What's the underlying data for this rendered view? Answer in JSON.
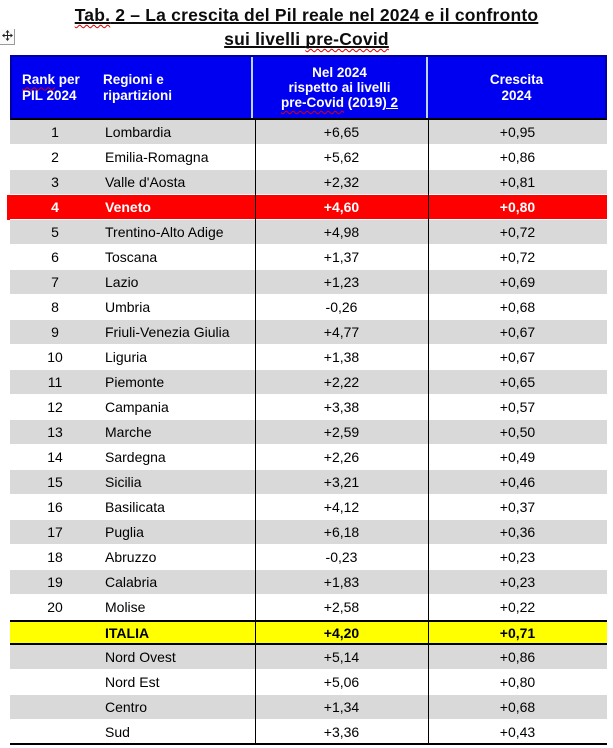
{
  "title": {
    "line1_misspelled": "Tab.",
    "line1_rest": " 2 – La crescita del Pil reale nel 2024 e il confronto",
    "line2_pre": "sui livelli ",
    "line2_misspelled": "pre-Covid"
  },
  "icons": {
    "table_move_handle": "move-cross"
  },
  "colors": {
    "header_bg": "#0000f0",
    "stripe_gray": "#d9d9d9",
    "highlight_red": "#ff0000",
    "highlight_yellow": "#ffff00"
  },
  "table": {
    "header": {
      "rank": {
        "w1": "Rank",
        "w1_rest": " per",
        "line2": "PIL 2024"
      },
      "region": {
        "line1": "Regioni e",
        "line2": "ripartizioni"
      },
      "vs2019": {
        "line1": "Nel 2024",
        "line2": "rispetto ai livelli",
        "w1": "pre-Covid",
        "w2": " (2019",
        "w3": ") 2"
      },
      "growth": {
        "line1": "Crescita",
        "line2": "2024"
      }
    },
    "rows": [
      {
        "rank": "1",
        "region": "Lombardia",
        "vs2019": "+6,65",
        "growth": "+0,95",
        "bg": "gray"
      },
      {
        "rank": "2",
        "region": "Emilia-Romagna",
        "vs2019": "+5,62",
        "growth": "+0,86",
        "bg": "white"
      },
      {
        "rank": "3",
        "region": "Valle d'Aosta",
        "vs2019": "+2,32",
        "growth": "+0,81",
        "bg": "gray"
      },
      {
        "rank": "4",
        "region": "Veneto",
        "vs2019": "+4,60",
        "growth": "+0,80",
        "bg": "red",
        "bold": true
      },
      {
        "rank": "5",
        "region": "Trentino-Alto Adige",
        "vs2019": "+4,98",
        "growth": "+0,72",
        "bg": "gray"
      },
      {
        "rank": "6",
        "region": "Toscana",
        "vs2019": "+1,37",
        "growth": "+0,72",
        "bg": "white"
      },
      {
        "rank": "7",
        "region": "Lazio",
        "vs2019": "+1,23",
        "growth": "+0,69",
        "bg": "gray"
      },
      {
        "rank": "8",
        "region": "Umbria",
        "vs2019": "-0,26",
        "growth": "+0,68",
        "bg": "white"
      },
      {
        "rank": "9",
        "region": "Friuli-Venezia Giulia",
        "vs2019": "+4,77",
        "growth": "+0,67",
        "bg": "gray"
      },
      {
        "rank": "10",
        "region": "Liguria",
        "vs2019": "+1,38",
        "growth": "+0,67",
        "bg": "white"
      },
      {
        "rank": "11",
        "region": "Piemonte",
        "vs2019": "+2,22",
        "growth": "+0,65",
        "bg": "gray"
      },
      {
        "rank": "12",
        "region": "Campania",
        "vs2019": "+3,38",
        "growth": "+0,57",
        "bg": "white"
      },
      {
        "rank": "13",
        "region": "Marche",
        "vs2019": "+2,59",
        "growth": "+0,50",
        "bg": "gray"
      },
      {
        "rank": "14",
        "region": "Sardegna",
        "vs2019": "+2,26",
        "growth": "+0,49",
        "bg": "white"
      },
      {
        "rank": "15",
        "region": "Sicilia",
        "vs2019": "+3,21",
        "growth": "+0,46",
        "bg": "gray"
      },
      {
        "rank": "16",
        "region": "Basilicata",
        "vs2019": "+4,12",
        "growth": "+0,37",
        "bg": "white"
      },
      {
        "rank": "17",
        "region": "Puglia",
        "vs2019": "+6,18",
        "growth": "+0,36",
        "bg": "gray"
      },
      {
        "rank": "18",
        "region": "Abruzzo",
        "vs2019": "-0,23",
        "growth": "+0,23",
        "bg": "white"
      },
      {
        "rank": "19",
        "region": "Calabria",
        "vs2019": "+1,83",
        "growth": "+0,23",
        "bg": "gray"
      },
      {
        "rank": "20",
        "region": "Molise",
        "vs2019": "+2,58",
        "growth": "+0,22",
        "bg": "white"
      },
      {
        "rank": "",
        "region": "ITALIA",
        "vs2019": "+4,20",
        "growth": "+0,71",
        "bg": "yellow",
        "bold": true
      },
      {
        "rank": "",
        "region": "Nord Ovest",
        "vs2019": "+5,14",
        "growth": "+0,86",
        "bg": "gray"
      },
      {
        "rank": "",
        "region": "Nord Est",
        "vs2019": "+5,06",
        "growth": "+0,80",
        "bg": "white"
      },
      {
        "rank": "",
        "region": "Centro",
        "vs2019": "+1,34",
        "growth": "+0,68",
        "bg": "gray"
      },
      {
        "rank": "",
        "region": "Sud",
        "vs2019": "+3,36",
        "growth": "+0,43",
        "bg": "white"
      }
    ]
  }
}
